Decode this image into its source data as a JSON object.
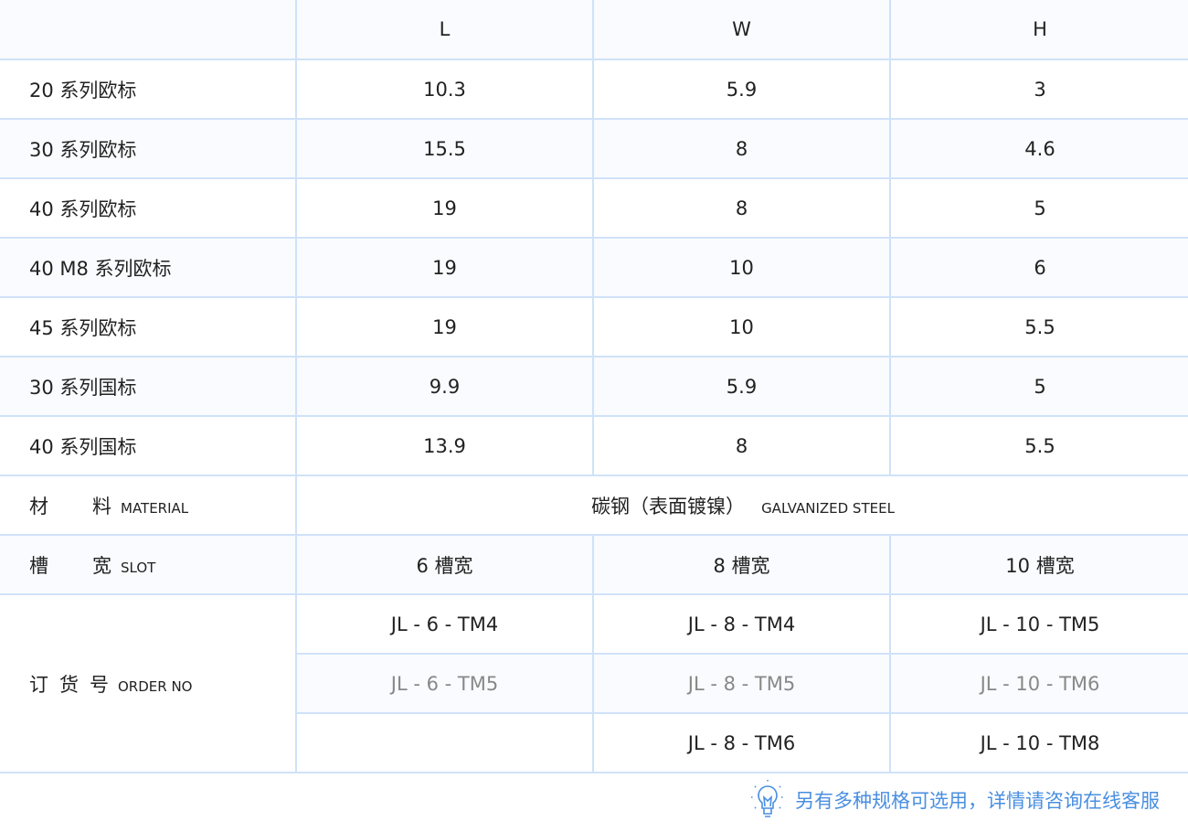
{
  "header": {
    "columns": [
      "",
      "L",
      "W",
      "H"
    ]
  },
  "rows": [
    {
      "name": "20 系列欧标",
      "L": "10.3",
      "W": "5.9",
      "H": "3"
    },
    {
      "name": "30 系列欧标",
      "L": "15.5",
      "W": "8",
      "H": "4.6"
    },
    {
      "name": "40 系列欧标",
      "L": "19",
      "W": "8",
      "H": "5"
    },
    {
      "name": "40 M8 系列欧标",
      "L": "19",
      "W": "10",
      "H": "6"
    },
    {
      "name": "45 系列欧标",
      "L": "19",
      "W": "10",
      "H": "5.5"
    },
    {
      "name": "30 系列国标",
      "L": "9.9",
      "W": "5.9",
      "H": "5"
    },
    {
      "name": "40 系列国标",
      "L": "13.9",
      "W": "8",
      "H": "5.5"
    }
  ],
  "material": {
    "label_a": "材",
    "label_b": "料",
    "label_en": "MATERIAL",
    "value": "碳钢（表面镀镍）",
    "value_en": "GALVANIZED STEEL"
  },
  "slot": {
    "label_a": "槽",
    "label_b": "宽",
    "label_en": "SLOT",
    "values": [
      "6 槽宽",
      "8 槽宽",
      "10 槽宽"
    ]
  },
  "order": {
    "label_a": "订",
    "label_b": "货",
    "label_c": "号",
    "label_en": "ORDER NO",
    "rows": [
      [
        "JL - 6 - TM4",
        "JL - 8 - TM4",
        "JL - 10 - TM5"
      ],
      [
        "JL - 6 - TM5",
        "JL - 8 - TM5",
        "JL - 10 - TM6"
      ],
      [
        "",
        "JL - 8 - TM6",
        "JL - 10 - TM8"
      ]
    ]
  },
  "note": {
    "icon": "lightbulb-icon",
    "text": "另有多种规格可选用，详情请咨询在线客服",
    "color": "#4a8fe0"
  }
}
